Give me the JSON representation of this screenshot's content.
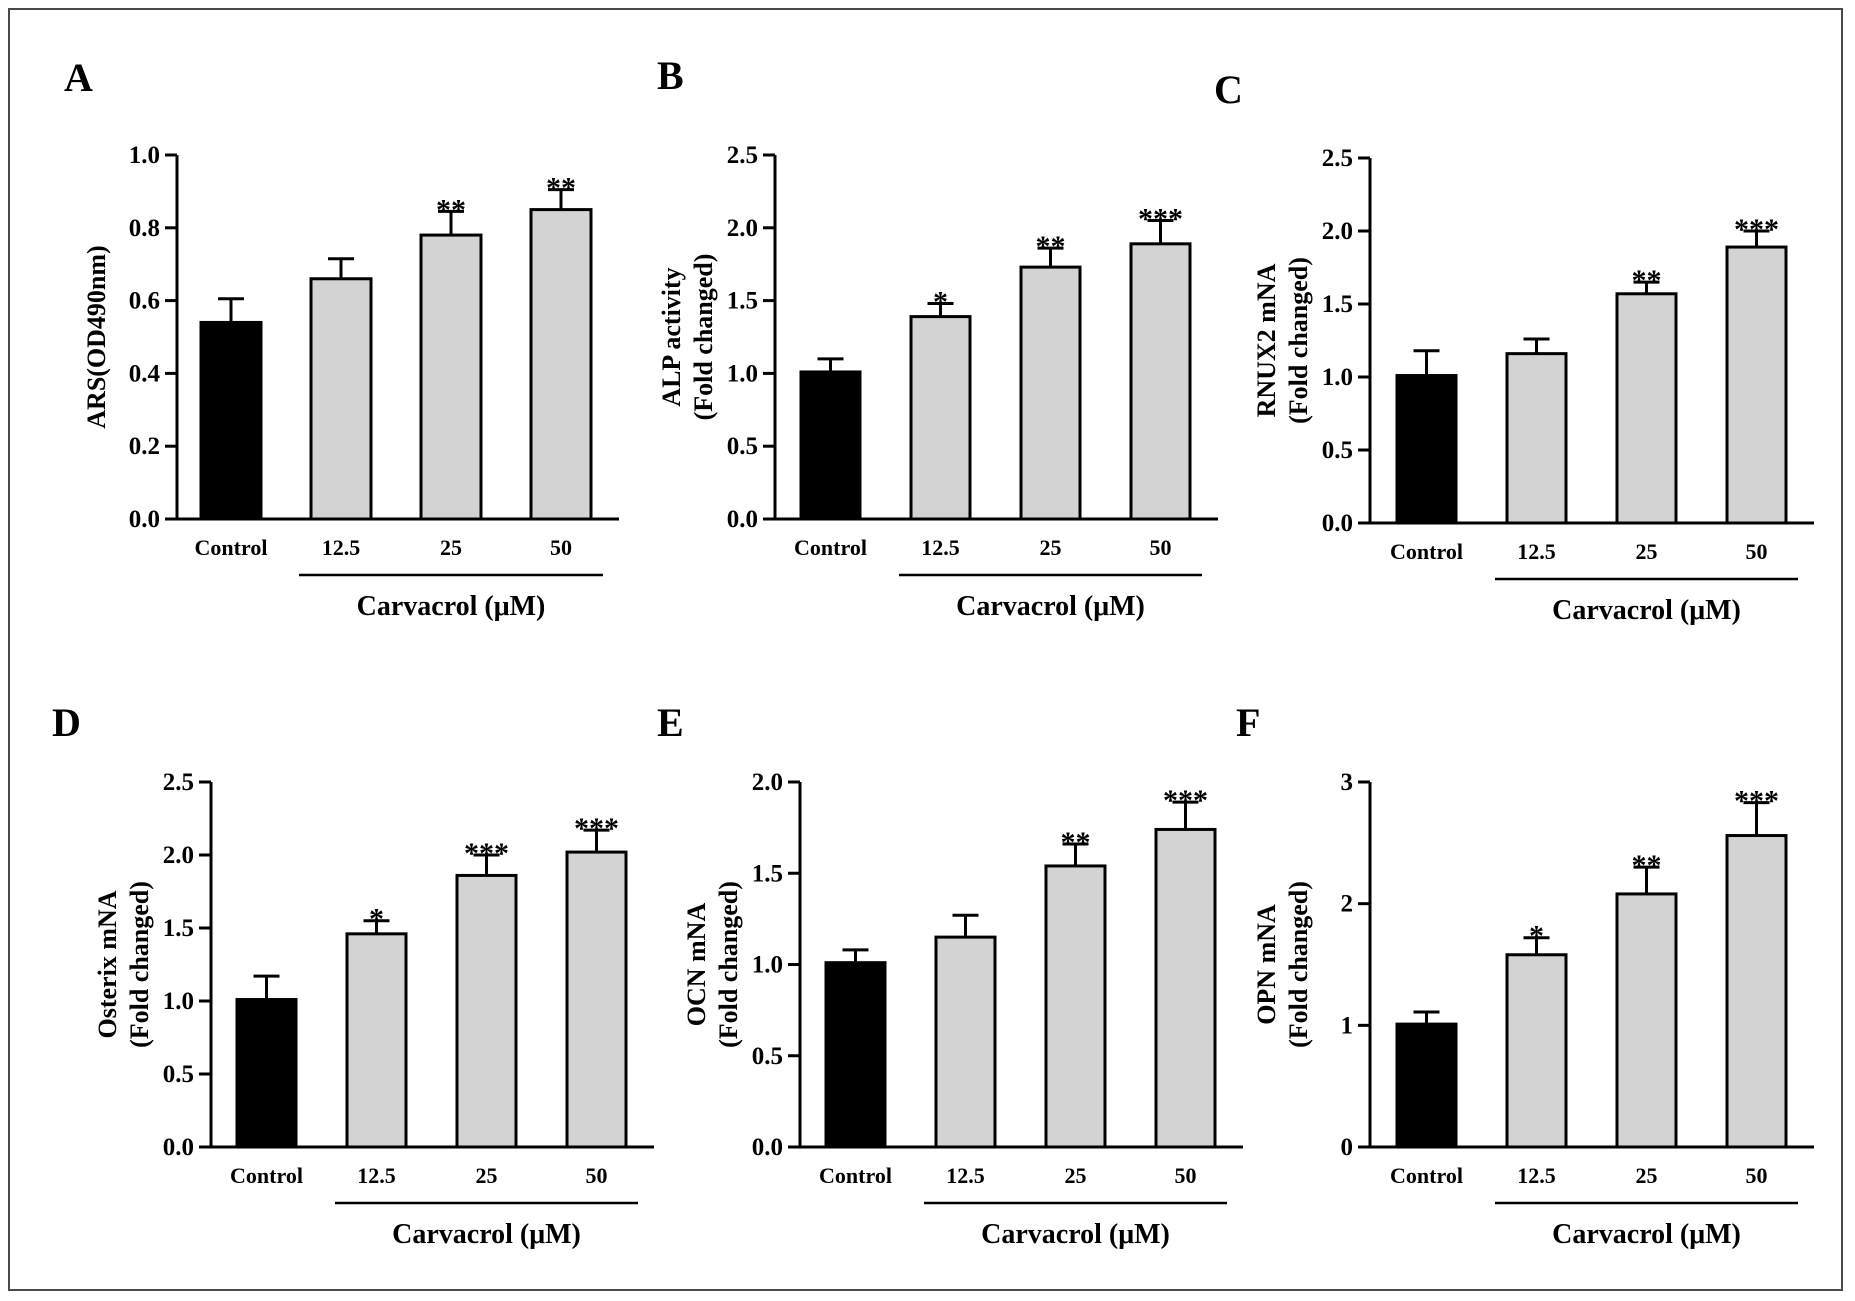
{
  "figure": {
    "frame_color": "#4a4a4a",
    "bar_colors": {
      "control": "#000000",
      "treatment": "#d3d3d3",
      "edge": "#000000"
    }
  },
  "chart_data": [
    {
      "panel": "A",
      "type": "bar",
      "ylabel": [
        "ARS(OD490nm)"
      ],
      "xlabel": "Carvacrol (μM)",
      "categories": [
        "Control",
        "12.5",
        "25",
        "50"
      ],
      "values": [
        0.54,
        0.66,
        0.78,
        0.85
      ],
      "errors": [
        0.065,
        0.055,
        0.065,
        0.055
      ],
      "significance": [
        "",
        "",
        "**",
        "**"
      ],
      "ylim": [
        0,
        1.0
      ],
      "yticks": [
        "0.0",
        "0.2",
        "0.4",
        "0.6",
        "0.8",
        "1.0"
      ],
      "ytick_values": [
        0,
        0.2,
        0.4,
        0.6,
        0.8,
        1.0
      ]
    },
    {
      "panel": "B",
      "type": "bar",
      "ylabel": [
        "ALP activity",
        "(Fold changed)"
      ],
      "xlabel": "Carvacrol (μM)",
      "categories": [
        "Control",
        "12.5",
        "25",
        "50"
      ],
      "values": [
        1.01,
        1.39,
        1.73,
        1.89
      ],
      "errors": [
        0.09,
        0.09,
        0.13,
        0.16
      ],
      "significance": [
        "",
        "*",
        "**",
        "***"
      ],
      "ylim": [
        0,
        2.5
      ],
      "yticks": [
        "0.0",
        "0.5",
        "1.0",
        "1.5",
        "2.0",
        "2.5"
      ],
      "ytick_values": [
        0,
        0.5,
        1.0,
        1.5,
        2.0,
        2.5
      ]
    },
    {
      "panel": "C",
      "type": "bar",
      "ylabel": [
        "RNUX2 mNA",
        "(Fold changed)"
      ],
      "xlabel": "Carvacrol (μM)",
      "categories": [
        "Control",
        "12.5",
        "25",
        "50"
      ],
      "values": [
        1.01,
        1.16,
        1.57,
        1.89
      ],
      "errors": [
        0.17,
        0.1,
        0.08,
        0.11
      ],
      "significance": [
        "",
        "",
        "**",
        "***"
      ],
      "ylim": [
        0,
        2.5
      ],
      "yticks": [
        "0.0",
        "0.5",
        "1.0",
        "1.5",
        "2.0",
        "2.5"
      ],
      "ytick_values": [
        0,
        0.5,
        1.0,
        1.5,
        2.0,
        2.5
      ]
    },
    {
      "panel": "D",
      "type": "bar",
      "ylabel": [
        "Osterix mNA",
        "(Fold changed)"
      ],
      "xlabel": "Carvacrol (μM)",
      "categories": [
        "Control",
        "12.5",
        "25",
        "50"
      ],
      "values": [
        1.01,
        1.46,
        1.86,
        2.02
      ],
      "errors": [
        0.16,
        0.09,
        0.14,
        0.15
      ],
      "significance": [
        "",
        "*",
        "***",
        "***"
      ],
      "ylim": [
        0,
        2.5
      ],
      "yticks": [
        "0.0",
        "0.5",
        "1.0",
        "1.5",
        "2.0",
        "2.5"
      ],
      "ytick_values": [
        0,
        0.5,
        1.0,
        1.5,
        2.0,
        2.5
      ]
    },
    {
      "panel": "E",
      "type": "bar",
      "ylabel": [
        "OCN mNA",
        "(Fold changed)"
      ],
      "xlabel": "Carvacrol (μM)",
      "categories": [
        "Control",
        "12.5",
        "25",
        "50"
      ],
      "values": [
        1.01,
        1.15,
        1.54,
        1.74
      ],
      "errors": [
        0.07,
        0.12,
        0.12,
        0.15
      ],
      "significance": [
        "",
        "",
        "**",
        "***"
      ],
      "ylim": [
        0,
        2.0
      ],
      "yticks": [
        "0.0",
        "0.5",
        "1.0",
        "1.5",
        "2.0"
      ],
      "ytick_values": [
        0,
        0.5,
        1.0,
        1.5,
        2.0
      ]
    },
    {
      "panel": "F",
      "type": "bar",
      "ylabel": [
        "OPN mNA",
        "(Fold changed)"
      ],
      "xlabel": "Carvacrol (μM)",
      "categories": [
        "Control",
        "12.5",
        "25",
        "50"
      ],
      "values": [
        1.01,
        1.58,
        2.08,
        2.56
      ],
      "errors": [
        0.1,
        0.14,
        0.22,
        0.27
      ],
      "significance": [
        "",
        "*",
        "**",
        "***"
      ],
      "ylim": [
        0,
        3
      ],
      "yticks": [
        "0",
        "1",
        "2",
        "3"
      ],
      "ytick_values": [
        0,
        1,
        2,
        3
      ]
    }
  ]
}
